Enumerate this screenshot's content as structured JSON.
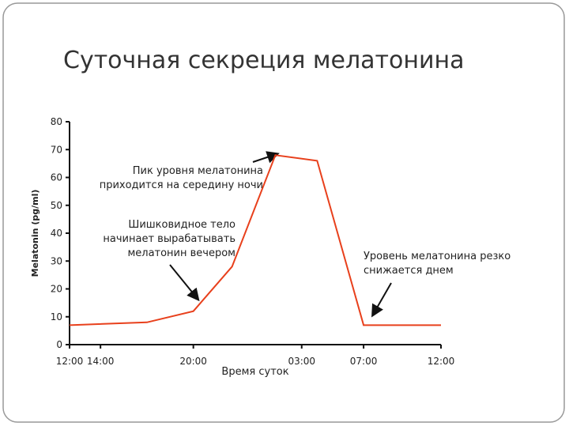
{
  "chart_data": {
    "type": "line",
    "title": "Суточная секреция мелатонина",
    "y_label": "Melatonin (pg/ml)",
    "x_label": "Время суток",
    "x": [
      0,
      5,
      8,
      10.5,
      13.3,
      16,
      19,
      24
    ],
    "series": [
      {
        "name": "Melatonin",
        "color": "#e8401c",
        "values": [
          7,
          8,
          12,
          28,
          68,
          66,
          7,
          7
        ]
      }
    ],
    "xlim": [
      0,
      24
    ],
    "xticks": [
      {
        "value": 0,
        "label": "12:00"
      },
      {
        "value": 2,
        "label": "14:00"
      },
      {
        "value": 8,
        "label": "20:00"
      },
      {
        "value": 15,
        "label": "03:00"
      },
      {
        "value": 19,
        "label": "07:00"
      },
      {
        "value": 24,
        "label": "12:00"
      }
    ],
    "ylim": [
      0,
      80
    ],
    "yticks": [
      0,
      10,
      20,
      30,
      40,
      50,
      60,
      70,
      80
    ],
    "annotations": [
      {
        "lines": [
          "Пик уровня мелатонина",
          "приходится на середину ночи"
        ]
      },
      {
        "lines": [
          "Шишковидное тело",
          "начинает вырабатывать",
          "мелатонин вечером"
        ]
      },
      {
        "lines": [
          "Уровень мелатонина резко",
          "снижается днем"
        ]
      }
    ]
  }
}
